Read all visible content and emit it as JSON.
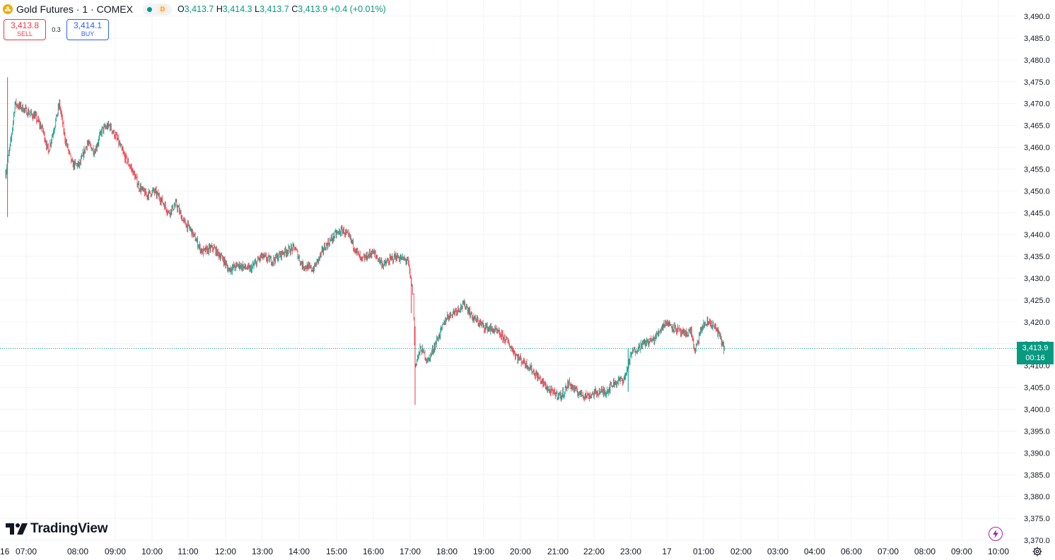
{
  "header": {
    "symbol_title": "Gold Futures · 1 · COMEX",
    "session_badge": "D",
    "ohlc": {
      "o_label": "O",
      "o_value": "3,413.7",
      "h_label": "H",
      "h_value": "3,414.3",
      "l_label": "L",
      "l_value": "3,413.7",
      "c_label": "C",
      "c_value": "3,413.9",
      "change": "+0.4 (+0.01%)"
    },
    "icons": {
      "symbol": "gold-bars-icon",
      "status": "market-open-dot-icon"
    }
  },
  "trade": {
    "sell_price": "3,413.8",
    "sell_label": "SELL",
    "spread": "0.3",
    "buy_price": "3,414.1",
    "buy_label": "BUY"
  },
  "branding": {
    "logo_text": "TradingView",
    "logo_icon": "tradingview-logo-icon"
  },
  "last_price": {
    "value": "3,413.9",
    "countdown": "00:16"
  },
  "footer_icons": [
    "lightning-icon",
    "settings-gear-icon"
  ],
  "colors": {
    "up": "#089981",
    "down": "#f23645",
    "grid": "#f0f3fa",
    "text": "#131722"
  },
  "chart_data": {
    "type": "candlestick",
    "interval": "1 minute",
    "y_ticks": [
      3370,
      3375,
      3380,
      3385,
      3390,
      3395,
      3400,
      3405,
      3410,
      3415,
      3420,
      3425,
      3430,
      3435,
      3440,
      3445,
      3450,
      3455,
      3460,
      3465,
      3470,
      3475,
      3480,
      3485,
      3490
    ],
    "ylim": [
      3369.5,
      3492.5
    ],
    "x_ticks": [
      "16",
      "07:00",
      "08:00",
      "09:00",
      "10:00",
      "11:00",
      "12:00",
      "13:00",
      "14:00",
      "15:00",
      "16:00",
      "17:00",
      "18:00",
      "19:00",
      "20:00",
      "21:00",
      "22:00",
      "23:00",
      "17",
      "01:00",
      "02:00",
      "03:00",
      "04:00",
      "06:00",
      "07:00",
      "08:00",
      "09:00",
      "10:00"
    ],
    "last_price": 3413.9,
    "price_path": [
      {
        "t": 0.0,
        "p": 3454
      },
      {
        "t": 0.15,
        "p": 3462
      },
      {
        "t": 0.25,
        "p": 3470
      },
      {
        "t": 0.45,
        "p": 3469
      },
      {
        "t": 0.6,
        "p": 3468
      },
      {
        "t": 0.8,
        "p": 3467
      },
      {
        "t": 1.0,
        "p": 3464
      },
      {
        "t": 1.15,
        "p": 3459
      },
      {
        "t": 1.35,
        "p": 3466
      },
      {
        "t": 1.45,
        "p": 3470
      },
      {
        "t": 1.6,
        "p": 3462
      },
      {
        "t": 1.8,
        "p": 3456
      },
      {
        "t": 2.0,
        "p": 3456
      },
      {
        "t": 2.2,
        "p": 3461
      },
      {
        "t": 2.4,
        "p": 3459
      },
      {
        "t": 2.6,
        "p": 3464
      },
      {
        "t": 2.8,
        "p": 3465
      },
      {
        "t": 3.0,
        "p": 3462
      },
      {
        "t": 3.2,
        "p": 3458
      },
      {
        "t": 3.4,
        "p": 3455
      },
      {
        "t": 3.6,
        "p": 3451
      },
      {
        "t": 3.8,
        "p": 3449
      },
      {
        "t": 4.0,
        "p": 3450
      },
      {
        "t": 4.2,
        "p": 3448
      },
      {
        "t": 4.4,
        "p": 3445
      },
      {
        "t": 4.6,
        "p": 3447
      },
      {
        "t": 4.8,
        "p": 3443
      },
      {
        "t": 5.0,
        "p": 3441
      },
      {
        "t": 5.3,
        "p": 3436
      },
      {
        "t": 5.6,
        "p": 3437
      },
      {
        "t": 5.9,
        "p": 3434
      },
      {
        "t": 6.0,
        "p": 3432
      },
      {
        "t": 6.3,
        "p": 3433
      },
      {
        "t": 6.6,
        "p": 3432
      },
      {
        "t": 6.9,
        "p": 3435
      },
      {
        "t": 7.2,
        "p": 3434
      },
      {
        "t": 7.5,
        "p": 3436
      },
      {
        "t": 7.8,
        "p": 3437
      },
      {
        "t": 8.0,
        "p": 3433
      },
      {
        "t": 8.3,
        "p": 3432
      },
      {
        "t": 8.6,
        "p": 3437
      },
      {
        "t": 8.9,
        "p": 3440
      },
      {
        "t": 9.1,
        "p": 3441
      },
      {
        "t": 9.3,
        "p": 3439
      },
      {
        "t": 9.6,
        "p": 3434
      },
      {
        "t": 9.9,
        "p": 3436
      },
      {
        "t": 10.2,
        "p": 3433
      },
      {
        "t": 10.5,
        "p": 3435
      },
      {
        "t": 10.85,
        "p": 3434
      },
      {
        "t": 11.0,
        "p": 3426
      },
      {
        "t": 11.05,
        "p": 3410
      },
      {
        "t": 11.2,
        "p": 3414
      },
      {
        "t": 11.4,
        "p": 3411
      },
      {
        "t": 11.6,
        "p": 3415
      },
      {
        "t": 11.9,
        "p": 3421
      },
      {
        "t": 12.2,
        "p": 3423
      },
      {
        "t": 12.4,
        "p": 3424
      },
      {
        "t": 12.6,
        "p": 3421
      },
      {
        "t": 12.9,
        "p": 3419
      },
      {
        "t": 13.2,
        "p": 3418
      },
      {
        "t": 13.5,
        "p": 3416
      },
      {
        "t": 13.8,
        "p": 3412
      },
      {
        "t": 14.1,
        "p": 3410
      },
      {
        "t": 14.4,
        "p": 3407
      },
      {
        "t": 14.7,
        "p": 3404
      },
      {
        "t": 15.0,
        "p": 3403
      },
      {
        "t": 15.2,
        "p": 3406
      },
      {
        "t": 15.4,
        "p": 3404
      },
      {
        "t": 15.7,
        "p": 3403
      },
      {
        "t": 16.0,
        "p": 3404
      },
      {
        "t": 16.2,
        "p": 3404
      },
      {
        "t": 16.4,
        "p": 3406
      },
      {
        "t": 16.7,
        "p": 3407
      },
      {
        "t": 16.9,
        "p": 3413
      },
      {
        "t": 17.2,
        "p": 3415
      },
      {
        "t": 17.5,
        "p": 3416
      },
      {
        "t": 17.8,
        "p": 3420
      },
      {
        "t": 18.0,
        "p": 3419
      },
      {
        "t": 18.3,
        "p": 3417
      },
      {
        "t": 18.5,
        "p": 3418
      },
      {
        "t": 18.6,
        "p": 3413
      },
      {
        "t": 18.8,
        "p": 3419
      },
      {
        "t": 19.0,
        "p": 3420
      },
      {
        "t": 19.2,
        "p": 3418
      },
      {
        "t": 19.4,
        "p": 3413.9
      }
    ],
    "notable_wicks": [
      {
        "t": 0.05,
        "high": 3476,
        "low": 3444
      },
      {
        "t": 11.05,
        "high": 3419,
        "low": 3401
      },
      {
        "t": 10.95,
        "high": 3430,
        "low": 3422
      },
      {
        "t": 16.8,
        "high": 3414,
        "low": 3404
      }
    ]
  }
}
